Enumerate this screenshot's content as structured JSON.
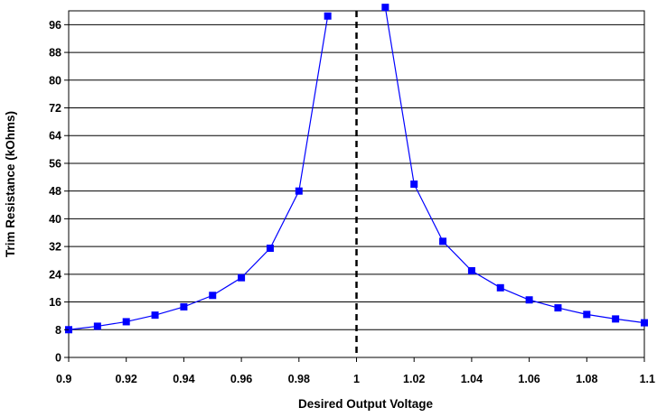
{
  "chart_data": {
    "type": "line",
    "title": "",
    "xlabel": "Desired Output Voltage",
    "ylabel": "Trim Resistance (kOhms)",
    "xlim": [
      0.9,
      1.1
    ],
    "ylim": [
      0,
      100
    ],
    "x_ticks": [
      "0.9",
      "0.92",
      "0.94",
      "0.96",
      "0.98",
      "1",
      "1.02",
      "1.04",
      "1.06",
      "1.08",
      "1.1"
    ],
    "y_ticks": [
      "0",
      "8",
      "16",
      "24",
      "32",
      "40",
      "48",
      "56",
      "64",
      "72",
      "80",
      "88",
      "96"
    ],
    "grid": "horizontal",
    "legend": "none",
    "reference_line": {
      "x": 1.0,
      "style": "dashed",
      "color": "#000000"
    },
    "series": [
      {
        "segment": "below-1.0",
        "color": "#0000FF",
        "marker": "square",
        "x": [
          0.9,
          0.91,
          0.92,
          0.93,
          0.94,
          0.95,
          0.96,
          0.97,
          0.98,
          0.99
        ],
        "y": [
          8,
          9,
          10.3,
          12.2,
          14.6,
          17.9,
          23,
          31.5,
          48,
          98.5
        ]
      },
      {
        "segment": "above-1.0",
        "color": "#0000FF",
        "marker": "square",
        "x": [
          1.01,
          1.02,
          1.03,
          1.04,
          1.05,
          1.06,
          1.07,
          1.08,
          1.09,
          1.1
        ],
        "y": [
          101,
          50,
          33.5,
          25,
          20.1,
          16.6,
          14.3,
          12.4,
          11.1,
          10
        ]
      }
    ]
  }
}
